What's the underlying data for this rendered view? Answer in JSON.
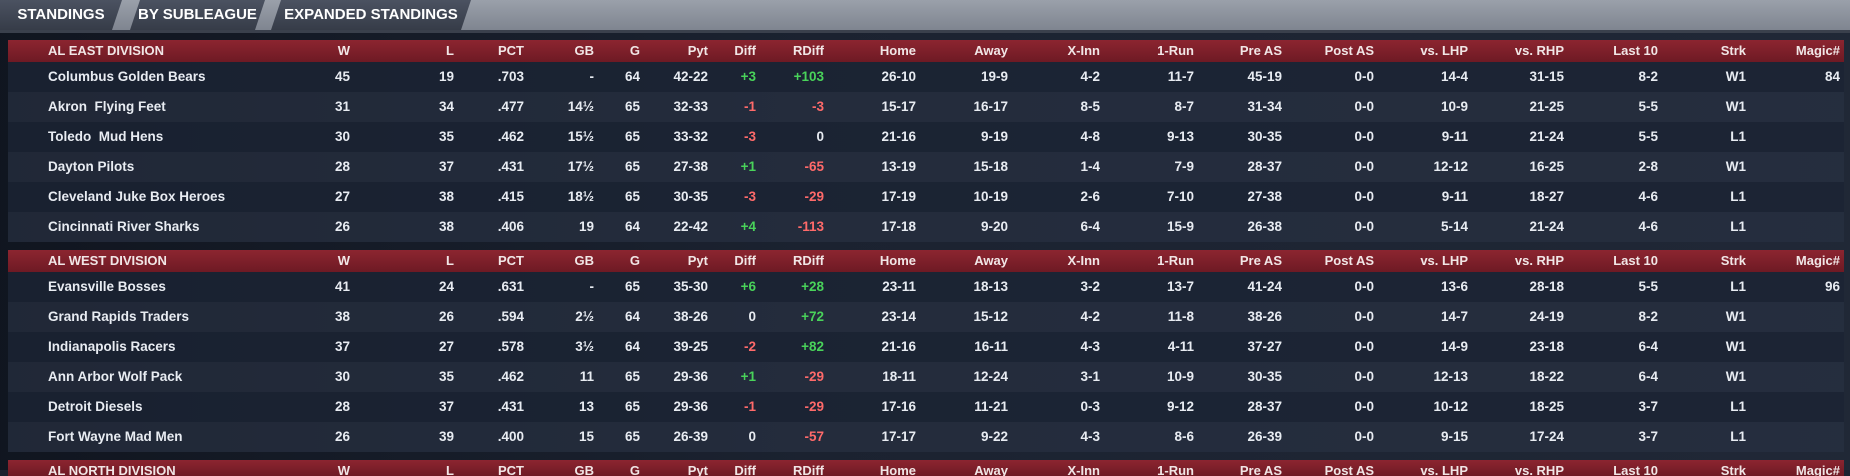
{
  "tabs": [
    "STANDINGS",
    "BY SUBLEAGUE",
    "EXPANDED STANDINGS"
  ],
  "columns": [
    "W",
    "L",
    "PCT",
    "GB",
    "G",
    "Pyt",
    "Diff",
    "RDiff",
    "Home",
    "Away",
    "X-Inn",
    "1-Run",
    "Pre AS",
    "Post AS",
    "vs. LHP",
    "vs. RHP",
    "Last 10",
    "Strk",
    "Magic#"
  ],
  "divisions": [
    {
      "name": "AL EAST DIVISION",
      "teams": [
        {
          "team": "Columbus Golden Bears",
          "w": "45",
          "l": "19",
          "pct": ".703",
          "gb": "-",
          "g": "64",
          "pyt": "42-22",
          "diff": "+3",
          "rdiff": "+103",
          "home": "26-10",
          "away": "19-9",
          "xinn": "4-2",
          "onerun": "11-7",
          "preas": "45-19",
          "postas": "0-0",
          "vlhp": "14-4",
          "vrhp": "31-15",
          "last10": "8-2",
          "strk": "W1",
          "magic": "84"
        },
        {
          "team": "Akron  Flying Feet",
          "w": "31",
          "l": "34",
          "pct": ".477",
          "gb": "14½",
          "g": "65",
          "pyt": "32-33",
          "diff": "-1",
          "rdiff": "-3",
          "home": "15-17",
          "away": "16-17",
          "xinn": "8-5",
          "onerun": "8-7",
          "preas": "31-34",
          "postas": "0-0",
          "vlhp": "10-9",
          "vrhp": "21-25",
          "last10": "5-5",
          "strk": "W1",
          "magic": ""
        },
        {
          "team": "Toledo  Mud Hens",
          "w": "30",
          "l": "35",
          "pct": ".462",
          "gb": "15½",
          "g": "65",
          "pyt": "33-32",
          "diff": "-3",
          "rdiff": "0",
          "home": "21-16",
          "away": "9-19",
          "xinn": "4-8",
          "onerun": "9-13",
          "preas": "30-35",
          "postas": "0-0",
          "vlhp": "9-11",
          "vrhp": "21-24",
          "last10": "5-5",
          "strk": "L1",
          "magic": ""
        },
        {
          "team": "Dayton Pilots",
          "w": "28",
          "l": "37",
          "pct": ".431",
          "gb": "17½",
          "g": "65",
          "pyt": "27-38",
          "diff": "+1",
          "rdiff": "-65",
          "home": "13-19",
          "away": "15-18",
          "xinn": "1-4",
          "onerun": "7-9",
          "preas": "28-37",
          "postas": "0-0",
          "vlhp": "12-12",
          "vrhp": "16-25",
          "last10": "2-8",
          "strk": "W1",
          "magic": ""
        },
        {
          "team": "Cleveland Juke Box Heroes",
          "w": "27",
          "l": "38",
          "pct": ".415",
          "gb": "18½",
          "g": "65",
          "pyt": "30-35",
          "diff": "-3",
          "rdiff": "-29",
          "home": "17-19",
          "away": "10-19",
          "xinn": "2-6",
          "onerun": "7-10",
          "preas": "27-38",
          "postas": "0-0",
          "vlhp": "9-11",
          "vrhp": "18-27",
          "last10": "4-6",
          "strk": "L1",
          "magic": ""
        },
        {
          "team": "Cincinnati River Sharks",
          "w": "26",
          "l": "38",
          "pct": ".406",
          "gb": "19",
          "g": "64",
          "pyt": "22-42",
          "diff": "+4",
          "rdiff": "-113",
          "home": "17-18",
          "away": "9-20",
          "xinn": "6-4",
          "onerun": "15-9",
          "preas": "26-38",
          "postas": "0-0",
          "vlhp": "5-14",
          "vrhp": "21-24",
          "last10": "4-6",
          "strk": "L1",
          "magic": ""
        }
      ]
    },
    {
      "name": "AL WEST DIVISION",
      "teams": [
        {
          "team": "Evansville Bosses",
          "w": "41",
          "l": "24",
          "pct": ".631",
          "gb": "-",
          "g": "65",
          "pyt": "35-30",
          "diff": "+6",
          "rdiff": "+28",
          "home": "23-11",
          "away": "18-13",
          "xinn": "3-2",
          "onerun": "13-7",
          "preas": "41-24",
          "postas": "0-0",
          "vlhp": "13-6",
          "vrhp": "28-18",
          "last10": "5-5",
          "strk": "L1",
          "magic": "96"
        },
        {
          "team": "Grand Rapids Traders",
          "w": "38",
          "l": "26",
          "pct": ".594",
          "gb": "2½",
          "g": "64",
          "pyt": "38-26",
          "diff": "0",
          "rdiff": "+72",
          "home": "23-14",
          "away": "15-12",
          "xinn": "4-2",
          "onerun": "11-8",
          "preas": "38-26",
          "postas": "0-0",
          "vlhp": "14-7",
          "vrhp": "24-19",
          "last10": "8-2",
          "strk": "W1",
          "magic": ""
        },
        {
          "team": "Indianapolis Racers",
          "w": "37",
          "l": "27",
          "pct": ".578",
          "gb": "3½",
          "g": "64",
          "pyt": "39-25",
          "diff": "-2",
          "rdiff": "+82",
          "home": "21-16",
          "away": "16-11",
          "xinn": "4-3",
          "onerun": "4-11",
          "preas": "37-27",
          "postas": "0-0",
          "vlhp": "14-9",
          "vrhp": "23-18",
          "last10": "6-4",
          "strk": "W1",
          "magic": ""
        },
        {
          "team": "Ann Arbor Wolf Pack",
          "w": "30",
          "l": "35",
          "pct": ".462",
          "gb": "11",
          "g": "65",
          "pyt": "29-36",
          "diff": "+1",
          "rdiff": "-29",
          "home": "18-11",
          "away": "12-24",
          "xinn": "3-1",
          "onerun": "10-9",
          "preas": "30-35",
          "postas": "0-0",
          "vlhp": "12-13",
          "vrhp": "18-22",
          "last10": "6-4",
          "strk": "W1",
          "magic": ""
        },
        {
          "team": "Detroit Diesels",
          "w": "28",
          "l": "37",
          "pct": ".431",
          "gb": "13",
          "g": "65",
          "pyt": "29-36",
          "diff": "-1",
          "rdiff": "-29",
          "home": "17-16",
          "away": "11-21",
          "xinn": "0-3",
          "onerun": "9-12",
          "preas": "28-37",
          "postas": "0-0",
          "vlhp": "10-12",
          "vrhp": "18-25",
          "last10": "3-7",
          "strk": "L1",
          "magic": ""
        },
        {
          "team": "Fort Wayne Mad Men",
          "w": "26",
          "l": "39",
          "pct": ".400",
          "gb": "15",
          "g": "65",
          "pyt": "26-39",
          "diff": "0",
          "rdiff": "-57",
          "home": "17-17",
          "away": "9-22",
          "xinn": "4-3",
          "onerun": "8-6",
          "preas": "26-39",
          "postas": "0-0",
          "vlhp": "9-15",
          "vrhp": "17-24",
          "last10": "3-7",
          "strk": "L1",
          "magic": ""
        }
      ]
    },
    {
      "name": "AL NORTH DIVISION",
      "teams": []
    }
  ],
  "colors": {
    "header_red": "#8c2530",
    "positive": "#49d35a",
    "negative": "#ff6a6a"
  }
}
